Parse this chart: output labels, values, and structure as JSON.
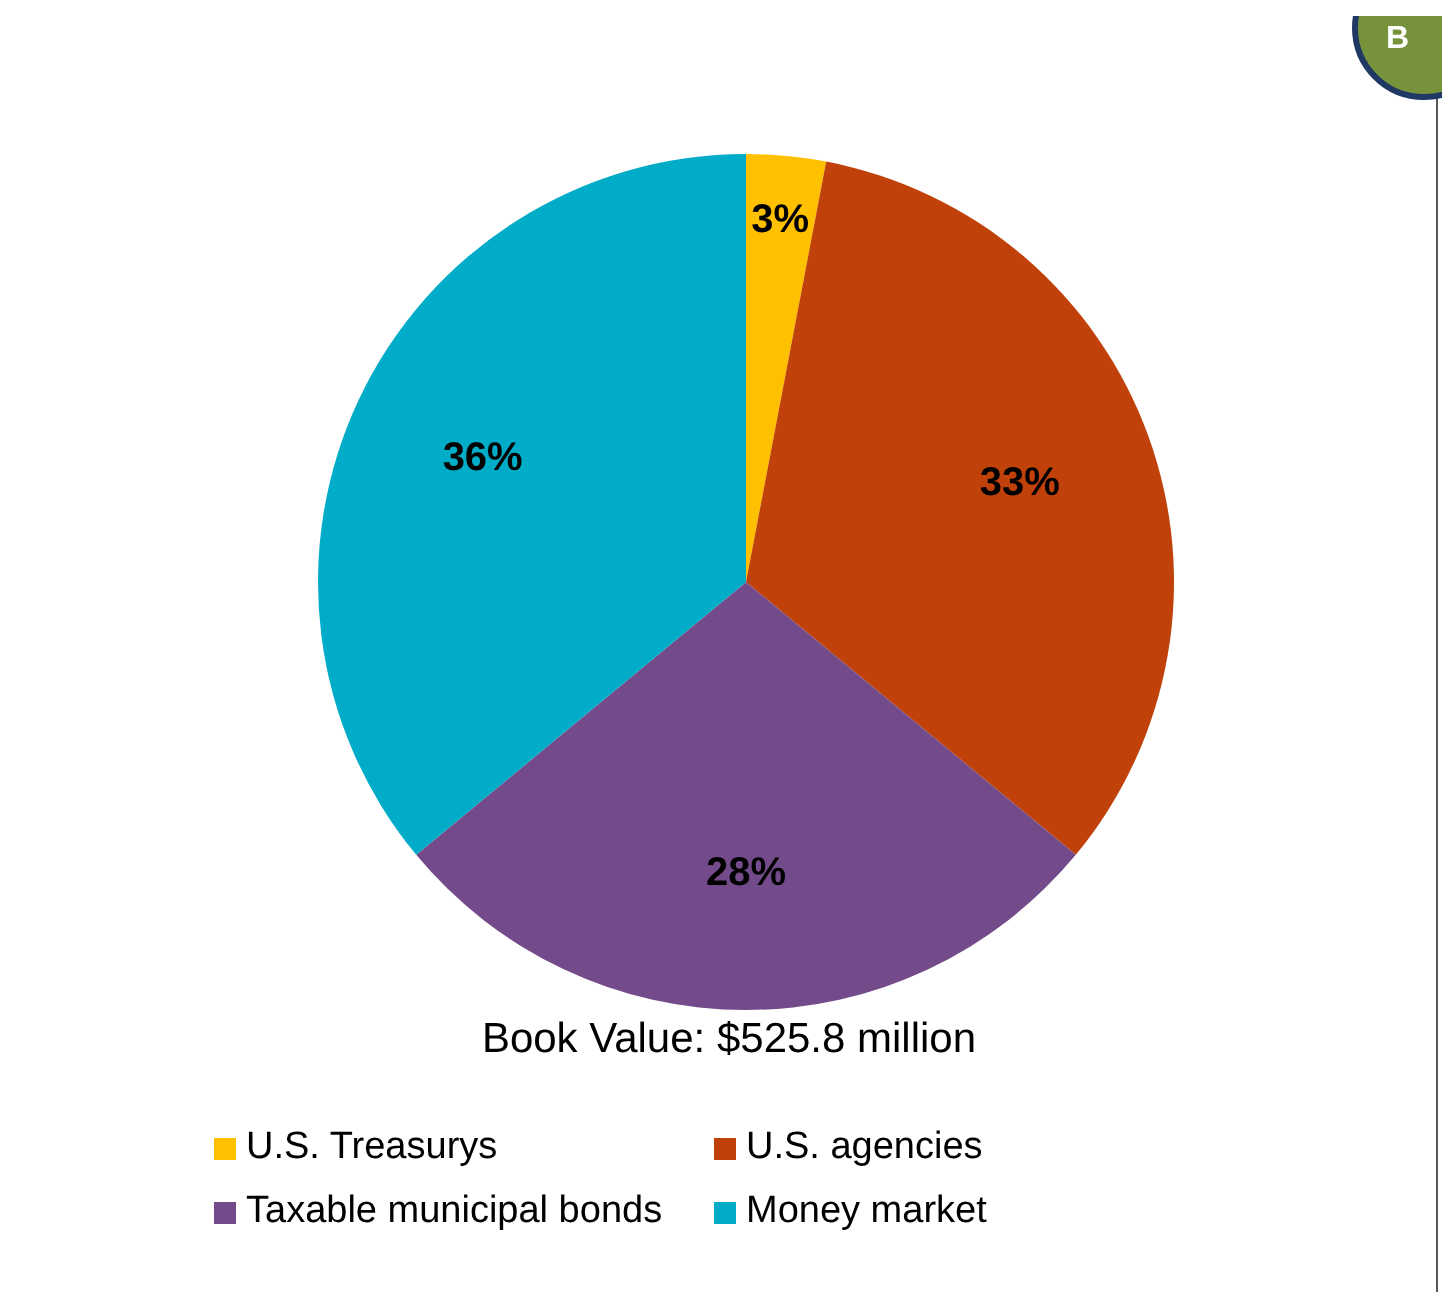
{
  "chart_data": {
    "type": "pie",
    "title": "Book Value: $525.8 million",
    "categories": [
      "U.S. Treasurys",
      "U.S. agencies",
      "Taxable municipal bonds",
      "Money market"
    ],
    "values": [
      3,
      33,
      28,
      36
    ],
    "colors": [
      "#ffc000",
      "#c0410a",
      "#744b8a",
      "#00acc8"
    ],
    "value_labels": [
      "3%",
      "33%",
      "28%",
      "36%"
    ],
    "legend": "bottom",
    "annotations": [
      "B"
    ]
  }
}
